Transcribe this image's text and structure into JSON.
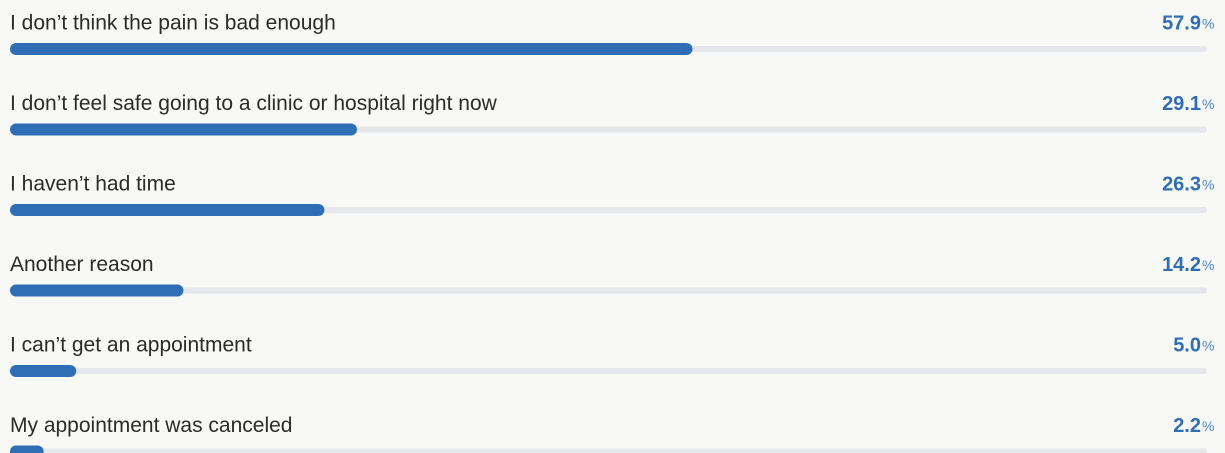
{
  "chart_data": {
    "type": "bar",
    "categories": [
      "I don’t think the pain is bad enough",
      "I don’t feel safe going to a clinic or hospital right now",
      "I haven’t had time",
      "Another reason",
      "I can’t get an appointment",
      "My appointment was canceled"
    ],
    "values": [
      57.9,
      29.1,
      26.3,
      14.2,
      5.0,
      2.2
    ],
    "value_labels": [
      "57.9",
      "29.1",
      "26.3",
      "14.2",
      "5.0",
      "2.2"
    ],
    "unit": "%",
    "color": "#2f6db5",
    "xlim": [
      0,
      100
    ]
  }
}
